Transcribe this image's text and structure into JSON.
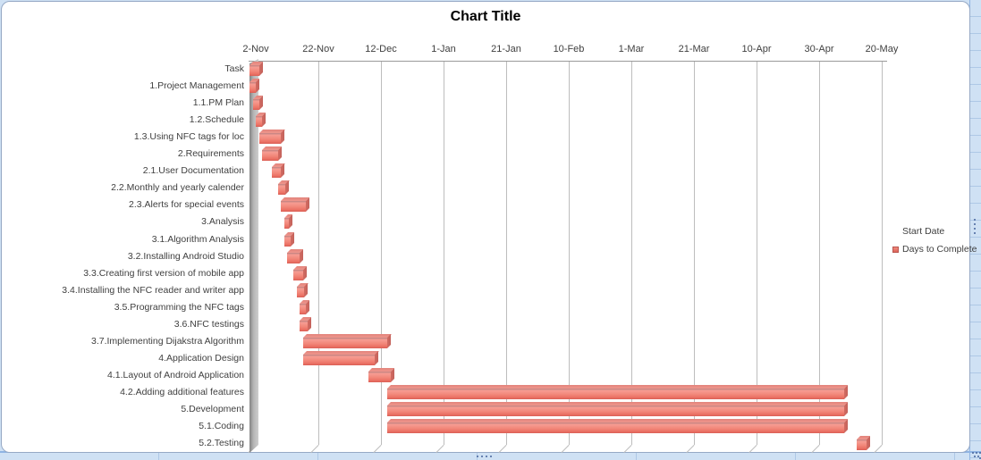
{
  "title": "Chart Title",
  "x_axis": {
    "labels": [
      "2-Nov",
      "22-Nov",
      "12-Dec",
      "1-Jan",
      "21-Jan",
      "10-Feb",
      "1-Mar",
      "21-Mar",
      "10-Apr",
      "30-Apr",
      "20-May"
    ],
    "tick_interval_days": 20
  },
  "legend": {
    "position": "right",
    "items": [
      {
        "label": "Start Date",
        "swatch": "none"
      },
      {
        "label": "Days to Complete",
        "swatch": "#ee7d70"
      }
    ]
  },
  "chart_data": {
    "type": "bar",
    "variant": "3d-horizontal-gantt",
    "title": "Chart Title",
    "x_axis_position": "top",
    "x_tick_labels": [
      "2-Nov",
      "22-Nov",
      "12-Dec",
      "1-Jan",
      "21-Jan",
      "10-Feb",
      "1-Mar",
      "21-Mar",
      "10-Apr",
      "30-Apr",
      "20-May"
    ],
    "x_range_days_from_2nov": [
      0,
      200
    ],
    "gridlines": "vertical",
    "legend_position": "right",
    "categories": [
      "Task",
      "1.Project Management",
      "1.1.PM Plan",
      "1.2.Schedule",
      "1.3.Using NFC tags for loc",
      "2.Requirements",
      "2.1.User Documentation",
      "2.2.Monthly and yearly calender",
      "2.3.Alerts for special events",
      "3.Analysis",
      "3.1.Algorithm Analysis",
      "3.2.Installing Android Studio",
      "3.3.Creating first version of mobile app",
      "3.4.Installing the NFC reader and writer app",
      "3.5.Programming the NFC tags",
      "3.6.NFC testings",
      "3.7.Implementing Dijakstra Algorithm",
      "4.Application Design",
      "4.1.Layout of Android Application",
      "4.2.Adding additional features",
      "5.Development",
      "5.1.Coding",
      "5.2.Testing"
    ],
    "series": [
      {
        "name": "Start Date",
        "visible": false,
        "unit": "days from 2-Nov",
        "values": [
          0,
          0,
          1,
          2,
          3,
          4,
          7,
          9,
          10,
          11,
          11,
          12,
          14,
          15,
          16,
          16,
          17,
          17,
          38,
          44,
          44,
          44,
          194
        ]
      },
      {
        "name": "Days to Complete",
        "visible": true,
        "color": "#ee7d70",
        "unit": "days",
        "values": [
          3,
          2,
          2,
          2,
          7,
          5,
          3,
          2.5,
          8,
          1.5,
          2,
          4,
          3,
          2.5,
          2,
          2.5,
          27,
          23,
          7,
          146,
          146,
          146,
          3
        ]
      }
    ]
  },
  "colors": {
    "bar_fill": "#ee7d70",
    "bar_dark_edge": "#da5f55",
    "wall_gray": "#a9a9a9",
    "gridline": "#bdbdbd",
    "frame_border": "#96a9c5",
    "sheet_background": "#cfe1f4",
    "handle_dots": "#44639b",
    "text": "#3f3f3f"
  }
}
